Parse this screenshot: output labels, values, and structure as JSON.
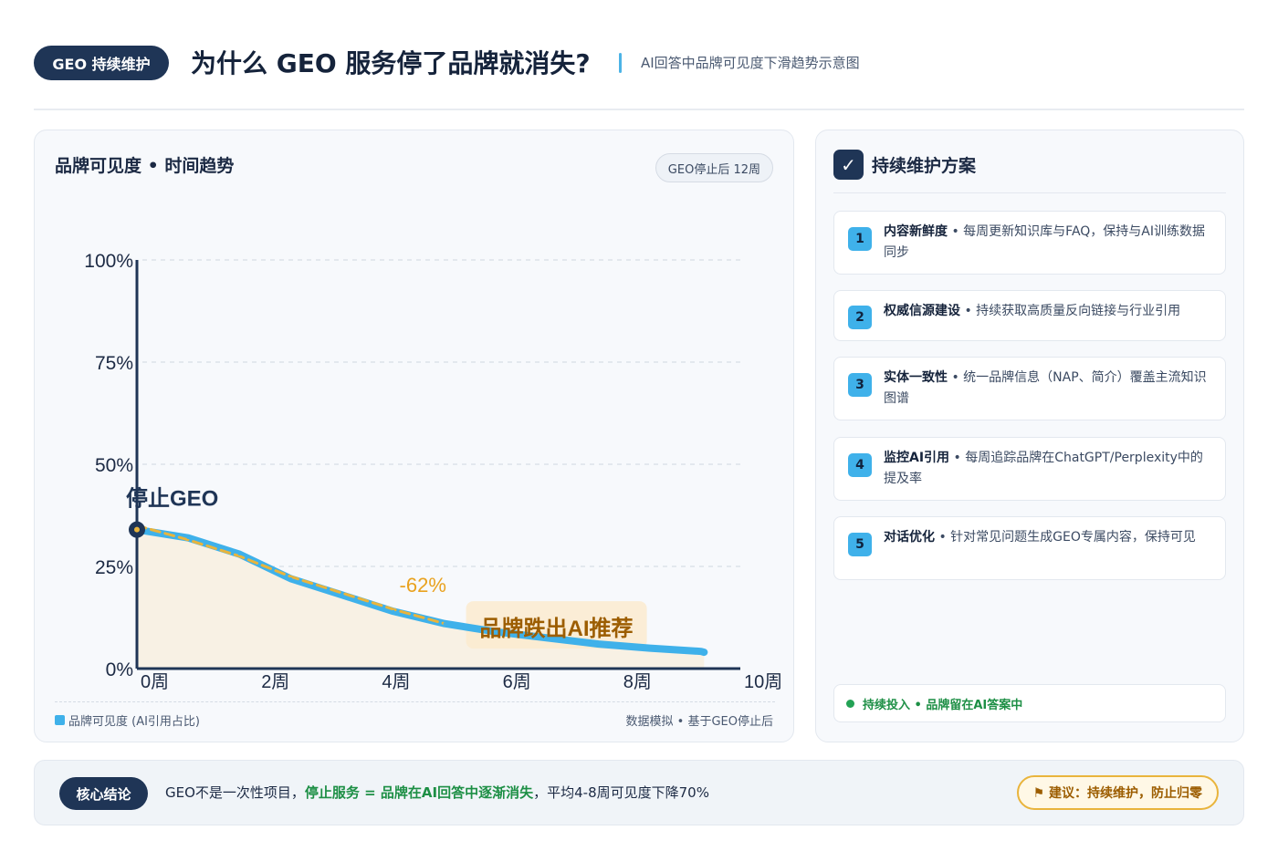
{
  "header": {
    "badge": "GEO 持续维护",
    "title": "为什么 GEO 服务停了品牌就消失?",
    "subtitle": "AI回答中品牌可见度下滑趋势示意图"
  },
  "chart_card": {
    "title": "品牌可见度 • 时间趋势",
    "pill": "GEO停止后 12周",
    "legend": "品牌可见度 (AI引用占比)",
    "note": "数据模拟 • 基于GEO停止后"
  },
  "chart_data": {
    "type": "area",
    "xlabel": "",
    "ylabel": "",
    "xlim": [
      0,
      10
    ],
    "ylim": [
      0,
      100
    ],
    "x_ticks": [
      0,
      2,
      4,
      6,
      8,
      10
    ],
    "x_tick_labels": [
      "0周",
      "2周",
      "4周",
      "6周",
      "8周",
      "10周"
    ],
    "y_ticks": [
      0,
      25,
      50,
      75,
      100
    ],
    "y_tick_labels": [
      "0%",
      "25%",
      "50%",
      "75%",
      "100%"
    ],
    "grid": true,
    "series": [
      {
        "name": "品牌可见度 (AI引用占比)",
        "x": [
          0,
          0.85,
          1.7,
          2.55,
          3.4,
          4.25,
          5.1,
          5.95,
          6.8,
          7.65,
          8.5,
          9.35,
          9.4
        ],
        "y": [
          34,
          32,
          28,
          22,
          18,
          14,
          11,
          9,
          7.5,
          6,
          5,
          4.2,
          4
        ],
        "color": "#3fb1ea"
      },
      {
        "name": "",
        "style": "dashed-trend",
        "x": [
          0,
          0.85,
          1.7,
          2.55,
          3.4,
          4.25,
          5.1
        ],
        "y": [
          35,
          31.5,
          27.5,
          22.5,
          18.5,
          14.5,
          11
        ],
        "color": "#e9b43c"
      }
    ],
    "annotations": {
      "stop_label": "停止GEO",
      "drop_label": "-62%",
      "exit_label": "品牌跌出AI推荐"
    }
  },
  "side": {
    "title": "持续维护方案",
    "check_icon": "✓",
    "items": [
      {
        "num": "1",
        "name": "内容新鲜度",
        "desc": "每周更新知识库与FAQ，保持与AI训练数据同步"
      },
      {
        "num": "2",
        "name": "权威信源建设",
        "desc": "持续获取高质量反向链接与行业引用"
      },
      {
        "num": "3",
        "name": "实体一致性",
        "desc": "统一品牌信息（NAP、简介）覆盖主流知识图谱"
      },
      {
        "num": "4",
        "name": "监控AI引用",
        "desc": "每周追踪品牌在ChatGPT/Perplexity中的提及率"
      },
      {
        "num": "5",
        "name": "对话优化",
        "desc": "针对常见问题生成GEO专属内容，保持可见"
      }
    ],
    "status": "持续投入 • 品牌留在AI答案中"
  },
  "bottom": {
    "badge": "核心结论",
    "text_before": "GEO不是一次性项目，",
    "text_highlight": "停止服务 = 品牌在AI回答中逐渐消失",
    "text_after": "，平均4-8周可见度下降70%",
    "advice": "⚑ 建议：持续维护，防止归零"
  },
  "colors": {
    "navy": "#1f3556",
    "accent_blue": "#3fb1ea",
    "amber": "#e9b43c",
    "green": "#1d8f45",
    "area_fill": "#f8f1e4"
  }
}
